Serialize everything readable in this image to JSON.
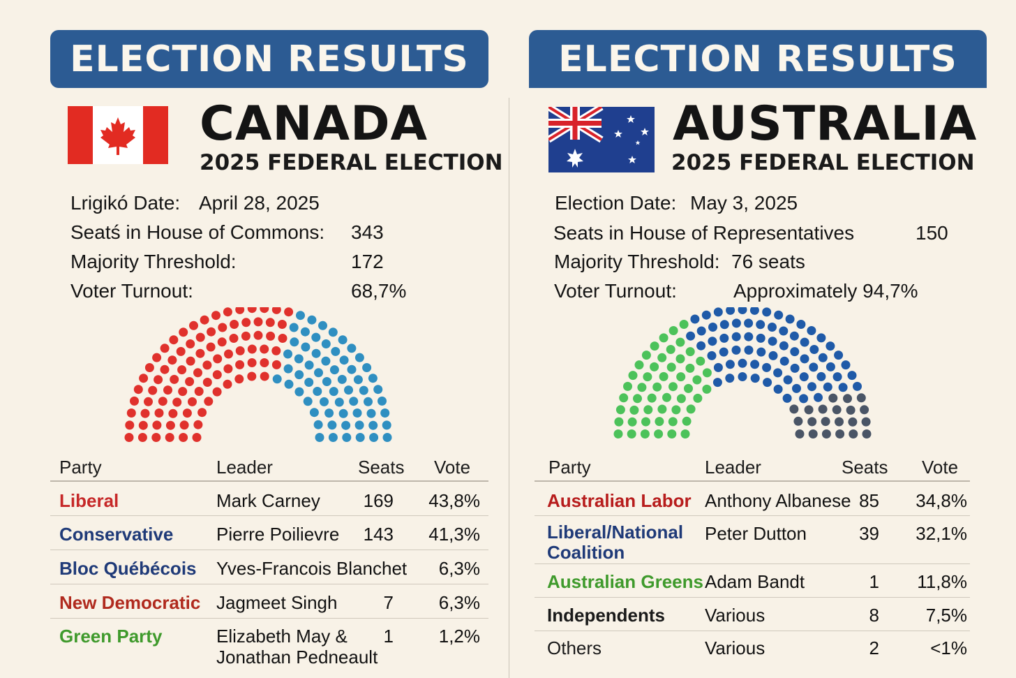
{
  "canada": {
    "banner": "ELECTION RESULTS",
    "country": "CANADA",
    "subtitle": "2025 FEDERAL ELECTION",
    "flag_icon": "canada-flag",
    "info": [
      {
        "label": "Lrigikó Date:",
        "value": "April 28, 2025"
      },
      {
        "label": "Seatś in House of Commons:",
        "value": "343"
      },
      {
        "label": "Majority Threshold:",
        "value": "172"
      },
      {
        "label": "Voter Turnout:",
        "value": "68,7%"
      }
    ],
    "table_headers": {
      "party": "Party",
      "leader": "Leader",
      "seats": "Seats",
      "vote": "Vote"
    },
    "rows": [
      {
        "party": "Liberal",
        "color": "#c62828",
        "leader": "Mark Carney",
        "seats": "169",
        "vote": "43,8%"
      },
      {
        "party": "Conservative",
        "color": "#1f3a78",
        "leader": "Pierre Poilievre",
        "seats": "143",
        "vote": "41,3%"
      },
      {
        "party": "Bloc Québécois",
        "color": "#1f3a78",
        "leader": "Yves-Francois Blanchet",
        "seats": "",
        "vote": "6,3%"
      },
      {
        "party": "New Democratic",
        "color": "#b02a1e",
        "leader": "Jagmeet Singh",
        "seats": "7",
        "vote": "6,3%"
      },
      {
        "party": "Green Party",
        "color": "#3f9a2c",
        "leader": "Elizabeth May &",
        "leader2": "Jonathan Pedneault",
        "seats": "1",
        "vote": "1,2%"
      }
    ],
    "hemicycle_colors": {
      "primary": "#e0312c",
      "secondary": "#2f8fc1"
    }
  },
  "australia": {
    "banner": "ELECTION RESULTS",
    "country": "AUSTRALIA",
    "subtitle": "2025 FEDERAL ELECTION",
    "flag_icon": "australia-flag",
    "info": [
      {
        "label": "Election Date:",
        "value": "May 3, 2025"
      },
      {
        "label": "Seats in House of Representatives",
        "value": "150"
      },
      {
        "label": "Majority Threshold:",
        "value": "76 seats"
      },
      {
        "label": "Voter Turnout:",
        "value": "Approximately 94,7%"
      }
    ],
    "table_headers": {
      "party": "Party",
      "leader": "Leader",
      "seats": "Seats",
      "vote": "Vote"
    },
    "rows": [
      {
        "party": "Australian Labor",
        "color": "#b71c1c",
        "leader": "Anthony Albanese",
        "seats": "85",
        "vote": "34,8%"
      },
      {
        "party": "Liberal/National",
        "party2": "Coalition",
        "color": "#1f3a78",
        "leader": "Peter Dutton",
        "seats": "39",
        "vote": "32,1%"
      },
      {
        "party": "Australian Greens",
        "color": "#3f9a2c",
        "leader": "Adam Bandt",
        "seats": "1",
        "vote": "11,8%"
      },
      {
        "party": "Independents",
        "color": "#1a1a1a",
        "leader": "Various",
        "seats": "8",
        "vote": "7,5%"
      },
      {
        "party": "Others",
        "color": "#1a1a1a",
        "bold": false,
        "leader": "Various",
        "seats": "2",
        "vote": "<1%"
      }
    ],
    "hemicycle_colors": {
      "primary": "#4cc25a",
      "secondary": "#1f5aa8",
      "tertiary": "#4a5566"
    }
  }
}
